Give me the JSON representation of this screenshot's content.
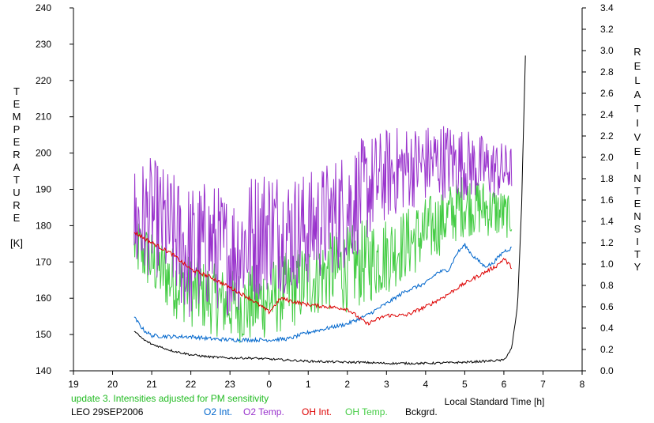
{
  "chart_data": {
    "type": "line",
    "left_axis_label_letters": [
      "T",
      "E",
      "M",
      "P",
      "E",
      "R",
      "A",
      "T",
      "U",
      "R",
      "E"
    ],
    "left_axis_unit": "[K]",
    "right_axis_label_letters_1": [
      "R",
      "E",
      "L",
      "A",
      "T",
      "I",
      "V",
      "E"
    ],
    "right_axis_label_letters_2": [
      "I",
      "N",
      "T",
      "E",
      "N",
      "S",
      "I",
      "T",
      "Y"
    ],
    "xlabel": "Local Standard Time [h]",
    "x_ticks": [
      "19",
      "20",
      "21",
      "22",
      "23",
      "0",
      "1",
      "2",
      "3",
      "4",
      "5",
      "6",
      "7",
      "8"
    ],
    "y_left_ticks": [
      "140",
      "150",
      "160",
      "170",
      "180",
      "190",
      "200",
      "210",
      "220",
      "230",
      "240"
    ],
    "y_right_ticks": [
      "0.0",
      "0.2",
      "0.4",
      "0.6",
      "0.8",
      "1.0",
      "1.2",
      "1.4",
      "1.6",
      "1.8",
      "2.0",
      "2.2",
      "2.4",
      "2.6",
      "2.8",
      "3.0",
      "3.2",
      "3.4"
    ],
    "xlim": [
      19,
      32
    ],
    "ylim_left": [
      140,
      240
    ],
    "ylim_right": [
      0.0,
      3.4
    ],
    "annotation": "update 3. Intensities adjusted for PM sensitivity",
    "annotation_color": "#22bb22",
    "station_label": "LEO 29SEP2006",
    "series": [
      {
        "name": "O2 Int.",
        "color": "#0066cc",
        "axis": "right",
        "x": [
          20.55,
          20.8,
          21.0,
          21.5,
          22.0,
          22.5,
          23.0,
          23.5,
          24.0,
          24.5,
          25.0,
          25.5,
          26.0,
          26.5,
          27.0,
          27.5,
          28.0,
          28.3,
          28.6,
          28.8,
          29.0,
          29.2,
          29.5,
          29.7,
          30.0,
          30.2
        ],
        "values": [
          0.5,
          0.38,
          0.33,
          0.32,
          0.32,
          0.3,
          0.29,
          0.29,
          0.29,
          0.3,
          0.36,
          0.4,
          0.44,
          0.52,
          0.63,
          0.75,
          0.82,
          0.92,
          0.95,
          1.1,
          1.18,
          1.08,
          0.98,
          1.0,
          1.12,
          1.15
        ]
      },
      {
        "name": "O2 Temp.",
        "color": "#9933cc",
        "axis": "left",
        "x": [
          20.55,
          21.0,
          21.5,
          22.0,
          22.5,
          23.0,
          23.5,
          24.0,
          24.5,
          25.0,
          25.5,
          26.0,
          26.5,
          27.0,
          27.5,
          28.0,
          28.5,
          29.0,
          29.5,
          30.0,
          30.2
        ],
        "values": [
          180,
          183,
          178,
          172,
          175,
          172,
          176,
          180,
          178,
          179,
          182,
          185,
          190,
          194,
          196,
          197,
          198,
          197,
          196,
          195,
          196
        ],
        "noise": [
          18,
          16,
          17,
          20,
          18,
          17,
          19,
          18,
          17,
          16,
          16,
          17,
          15,
          13,
          12,
          11,
          11,
          10,
          9,
          8,
          6
        ]
      },
      {
        "name": "OH Int.",
        "color": "#dd0000",
        "axis": "right",
        "x": [
          20.55,
          21.0,
          21.5,
          22.0,
          22.5,
          23.0,
          23.5,
          24.0,
          24.3,
          24.6,
          25.0,
          25.5,
          26.0,
          26.5,
          27.0,
          27.5,
          28.0,
          28.5,
          29.0,
          29.5,
          29.8,
          30.0,
          30.2
        ],
        "values": [
          1.3,
          1.2,
          1.1,
          0.95,
          0.88,
          0.78,
          0.68,
          0.55,
          0.68,
          0.65,
          0.62,
          0.6,
          0.58,
          0.44,
          0.52,
          0.52,
          0.6,
          0.7,
          0.82,
          0.92,
          0.98,
          1.05,
          0.97
        ]
      },
      {
        "name": "OH Temp.",
        "color": "#44cc44",
        "axis": "left",
        "x": [
          20.55,
          21.0,
          21.5,
          22.0,
          22.5,
          23.0,
          23.5,
          24.0,
          24.5,
          25.0,
          25.5,
          26.0,
          26.5,
          27.0,
          27.5,
          28.0,
          28.5,
          29.0,
          29.5,
          30.0,
          30.2
        ],
        "values": [
          175,
          170,
          165,
          162,
          160,
          158,
          158,
          160,
          162,
          165,
          167,
          168,
          170,
          172,
          175,
          178,
          182,
          186,
          185,
          183,
          182
        ],
        "noise": [
          9,
          9,
          10,
          10,
          10,
          10,
          11,
          11,
          11,
          11,
          11,
          12,
          12,
          11,
          10,
          10,
          9,
          9,
          8,
          7,
          5
        ]
      },
      {
        "name": "Bckgrd.",
        "color": "#000000",
        "axis": "right",
        "x": [
          20.55,
          20.8,
          21.0,
          21.5,
          22.0,
          22.5,
          23.0,
          23.5,
          24.0,
          25.0,
          26.0,
          26.3,
          27.0,
          28.0,
          29.0,
          30.0,
          30.2,
          30.35,
          30.45,
          30.55
        ],
        "values": [
          0.36,
          0.28,
          0.24,
          0.18,
          0.14,
          0.12,
          0.11,
          0.11,
          0.1,
          0.08,
          0.07,
          0.07,
          0.06,
          0.06,
          0.07,
          0.09,
          0.2,
          0.6,
          1.5,
          2.95
        ]
      }
    ]
  }
}
